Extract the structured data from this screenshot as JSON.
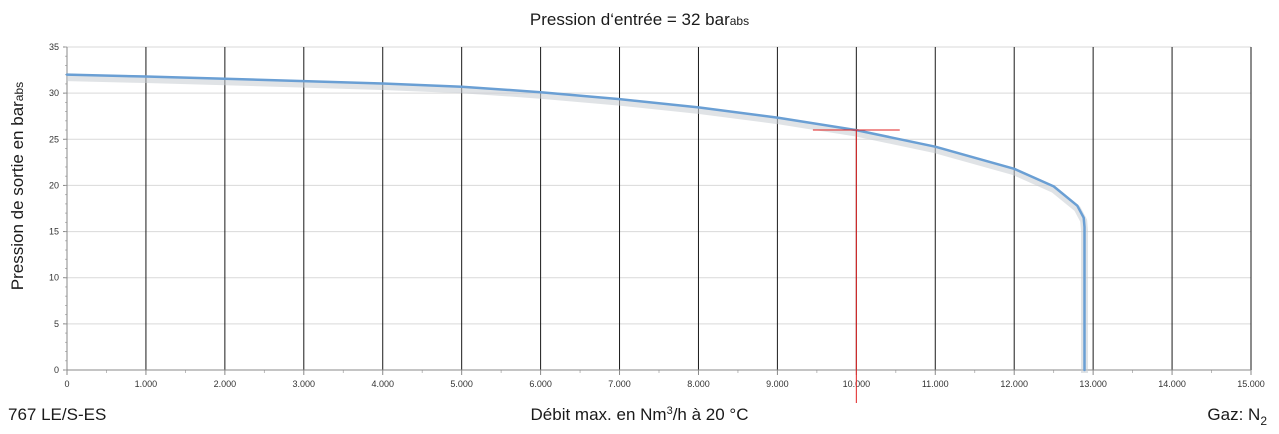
{
  "title": {
    "main": "Pression d‘entrée = 32 bar",
    "sub": "abs"
  },
  "y_axis_label": {
    "main": "Pression de sortie en bar",
    "sub": "abs"
  },
  "x_axis_label": {
    "prefix": "Débit max. en Nm",
    "sup": "3",
    "suffix": "/h à 20 °C"
  },
  "product": "767 LE/S-ES",
  "gas": {
    "label": "Gaz: N",
    "sub": "2"
  },
  "chart_data": {
    "type": "line",
    "title": "Pression d‘entrée = 32 bar abs",
    "xlabel": "Débit max. en Nm³/h à 20 °C",
    "ylabel": "Pression de sortie en bar abs",
    "xlim": [
      0,
      15000
    ],
    "ylim": [
      0,
      35
    ],
    "x_ticks": [
      "0",
      "1.000",
      "2.000",
      "3.000",
      "4.000",
      "5.000",
      "6.000",
      "7.000",
      "8.000",
      "9.000",
      "10.000",
      "11.000",
      "12.000",
      "13.000",
      "14.000",
      "15.000"
    ],
    "y_ticks": [
      "0",
      "5",
      "10",
      "15",
      "20",
      "25",
      "30",
      "35"
    ],
    "grid": {
      "vertical": true,
      "horizontal": true
    },
    "series": [
      {
        "color": "#6a9fd4",
        "x": [
          0,
          1000,
          2000,
          3000,
          4000,
          5000,
          6000,
          7000,
          8000,
          9000,
          10000,
          11000,
          12000,
          12500,
          12800,
          12880,
          12890,
          12890
        ],
        "y": [
          32.0,
          31.8,
          31.55,
          31.3,
          31.05,
          30.7,
          30.1,
          29.35,
          28.45,
          27.35,
          26.0,
          24.2,
          21.8,
          19.9,
          17.8,
          16.5,
          15.5,
          0
        ]
      }
    ],
    "annotation": {
      "type": "crosshair",
      "x": 10000,
      "y": 26,
      "color": "#e02020"
    }
  }
}
